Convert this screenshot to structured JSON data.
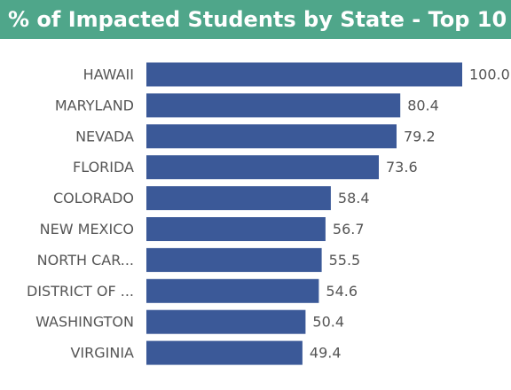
{
  "header": {
    "title": "% of Impacted Students by State - Top 10"
  },
  "colors": {
    "header_bg": "#4fa68a",
    "bar": "#3b5998"
  },
  "chart_data": {
    "type": "bar",
    "orientation": "horizontal",
    "title": "% of Impacted Students by State - Top 10",
    "categories": [
      "HAWAII",
      "MARYLAND",
      "NEVADA",
      "FLORIDA",
      "COLORADO",
      "NEW MEXICO",
      "NORTH CAR...",
      "DISTRICT OF ...",
      "WASHINGTON",
      "VIRGINIA"
    ],
    "values": [
      100.0,
      80.4,
      79.2,
      73.6,
      58.4,
      56.7,
      55.5,
      54.6,
      50.4,
      49.4
    ],
    "value_labels": [
      "100.0",
      "80.4",
      "79.2",
      "73.6",
      "58.4",
      "56.7",
      "55.5",
      "54.6",
      "50.4",
      "49.4"
    ],
    "xlim": [
      0,
      100
    ],
    "grid": false,
    "legend": "none"
  }
}
